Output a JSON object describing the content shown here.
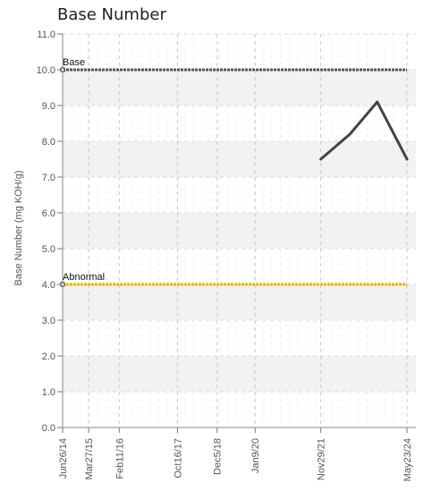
{
  "chart_data": {
    "type": "line",
    "title": "Base Number",
    "xlabel": "",
    "ylabel": "Base Number (mg KOH/g)",
    "ylim": [
      0,
      11
    ],
    "yticks": [
      0,
      1,
      2,
      3,
      4,
      5,
      6,
      7,
      8,
      9,
      10,
      11
    ],
    "ytick_labels": [
      "0.0",
      "1.0",
      "2.0",
      "3.0",
      "4.0",
      "5.0",
      "6.0",
      "7.0",
      "8.0",
      "9.0",
      "10.0",
      "11.0"
    ],
    "xticks": [
      "Jun26/14",
      "Mar27/15",
      "Feb11/16",
      "Oct16/17",
      "Dec5/18",
      "Jan9/20",
      "Nov29/21",
      "May23/24"
    ],
    "grid": true,
    "reference_lines": [
      {
        "label": "Base",
        "value": 10.0,
        "color": "#555555"
      },
      {
        "label": "Abnormal",
        "value": 4.0,
        "color": "#e3b800"
      }
    ],
    "series": [
      {
        "x": [
          "Nov29/21",
          "2022-10-01",
          "2023-07-15",
          "May23/24"
        ],
        "y": [
          7.5,
          8.2,
          9.1,
          7.5
        ],
        "color": "#444444"
      }
    ]
  }
}
